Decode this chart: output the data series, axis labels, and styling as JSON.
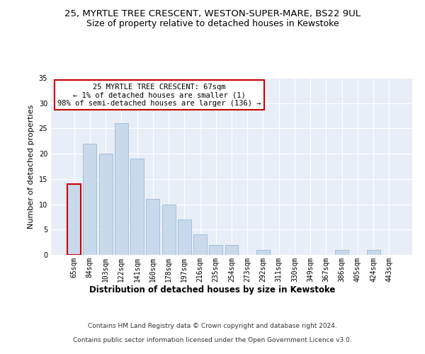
{
  "title": "25, MYRTLE TREE CRESCENT, WESTON-SUPER-MARE, BS22 9UL",
  "subtitle": "Size of property relative to detached houses in Kewstoke",
  "xlabel": "Distribution of detached houses by size in Kewstoke",
  "ylabel": "Number of detached properties",
  "categories": [
    "65sqm",
    "84sqm",
    "103sqm",
    "122sqm",
    "141sqm",
    "160sqm",
    "178sqm",
    "197sqm",
    "216sqm",
    "235sqm",
    "254sqm",
    "273sqm",
    "292sqm",
    "311sqm",
    "330sqm",
    "349sqm",
    "367sqm",
    "386sqm",
    "405sqm",
    "424sqm",
    "443sqm"
  ],
  "values": [
    14,
    22,
    20,
    26,
    19,
    11,
    10,
    7,
    4,
    2,
    2,
    0,
    1,
    0,
    0,
    0,
    0,
    1,
    0,
    1,
    0
  ],
  "bar_color": "#c9d9ec",
  "bar_edge_color": "#9ab8d4",
  "highlight_edge_color": "#cc0000",
  "annotation_text": "25 MYRTLE TREE CRESCENT: 67sqm\n← 1% of detached houses are smaller (1)\n98% of semi-detached houses are larger (136) →",
  "annotation_box_color": "white",
  "annotation_box_edge_color": "#cc0000",
  "ylim": [
    0,
    35
  ],
  "yticks": [
    0,
    5,
    10,
    15,
    20,
    25,
    30,
    35
  ],
  "background_color": "#e8eef7",
  "footer_line1": "Contains HM Land Registry data © Crown copyright and database right 2024.",
  "footer_line2": "Contains public sector information licensed under the Open Government Licence v3.0.",
  "title_fontsize": 9.5,
  "subtitle_fontsize": 9,
  "xlabel_fontsize": 8.5,
  "ylabel_fontsize": 8,
  "tick_fontsize": 7,
  "annotation_fontsize": 7.5,
  "footer_fontsize": 6.5
}
